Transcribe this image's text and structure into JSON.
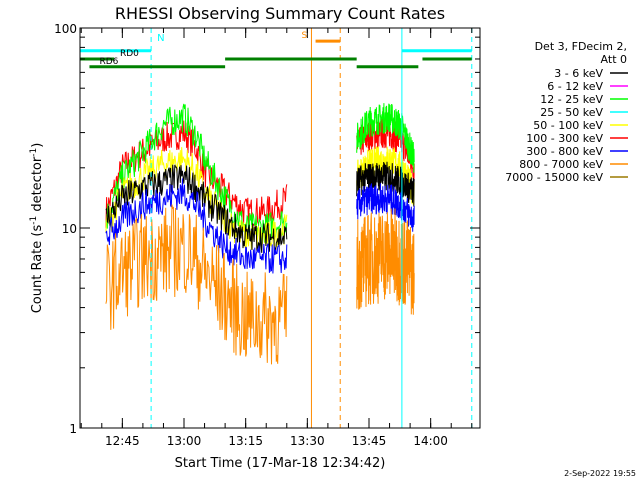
{
  "chart_data": {
    "type": "line",
    "title": "RHESSI Observing Summary Count Rates",
    "xlabel": "Start Time (17-Mar-18 12:34:42)",
    "ylabel_parts": {
      "main": "Count Rate (s",
      "sup": "-1",
      "tail": " detector",
      "sup2": "-1",
      "close": ")"
    },
    "y_scale": "log",
    "ylim": [
      1,
      100
    ],
    "y_ticks": [
      {
        "value": 1,
        "label": "1"
      },
      {
        "value": 10,
        "label": "10"
      },
      {
        "value": 100,
        "label": "100"
      }
    ],
    "xlim": [
      "12:34:42",
      "14:12:00"
    ],
    "x_ticks": [
      {
        "value": "12:45",
        "label": "12:45"
      },
      {
        "value": "13:00",
        "label": "13:00"
      },
      {
        "value": "13:15",
        "label": "13:15"
      },
      {
        "value": "13:30",
        "label": "13:30"
      },
      {
        "value": "13:45",
        "label": "13:45"
      },
      {
        "value": "14:00",
        "label": "14:00"
      }
    ],
    "legend": {
      "position": "top-right",
      "header": [
        "Det 3, FDecim 2,",
        "Att 0"
      ],
      "entries": [
        {
          "label": "3 - 6 keV",
          "color": "#000000"
        },
        {
          "label": "6 - 12 keV",
          "color": "#ff00ff"
        },
        {
          "label": "12 - 25 keV",
          "color": "#00ff00"
        },
        {
          "label": "25 - 50 keV",
          "color": "#00ffff"
        },
        {
          "label": "50 - 100 keV",
          "color": "#ffff00"
        },
        {
          "label": "100 - 300 keV",
          "color": "#ff0000"
        },
        {
          "label": "300 - 800 keV",
          "color": "#0000ff"
        },
        {
          "label": "800 - 7000 keV",
          "color": "#ff8c00"
        },
        {
          "label": "7000 - 15000 keV",
          "color": "#9c7a00"
        }
      ]
    },
    "intervals": [
      {
        "start": "12:41:00",
        "end": "13:25:00"
      },
      {
        "start": "13:42:00",
        "end": "13:56:00"
      }
    ],
    "series": [
      {
        "name": "100 - 300 keV",
        "color": "#ff0000",
        "times": [
          "12:41",
          "12:45",
          "12:50",
          "12:55",
          "13:00",
          "13:03",
          "13:05",
          "13:10",
          "13:15",
          "13:20",
          "13:25",
          "13:42",
          "13:45",
          "13:50",
          "13:53",
          "13:56"
        ],
        "values": [
          12,
          20,
          24,
          28,
          30,
          25,
          19,
          15,
          12,
          12,
          14,
          26,
          29,
          30,
          27,
          20
        ]
      },
      {
        "name": "12 - 25 keV",
        "color": "#00ff00",
        "times": [
          "12:41",
          "12:45",
          "12:50",
          "12:55",
          "13:00",
          "13:03",
          "13:05",
          "13:10",
          "13:15",
          "13:20",
          "13:25",
          "13:42",
          "13:45",
          "13:50",
          "13:53",
          "13:56"
        ],
        "values": [
          11,
          18,
          24,
          33,
          36,
          29,
          22,
          14,
          10,
          10,
          11,
          28,
          34,
          36,
          32,
          22
        ]
      },
      {
        "name": "50 - 100 keV",
        "color": "#ffff00",
        "times": [
          "12:41",
          "12:45",
          "12:50",
          "12:55",
          "13:00",
          "13:03",
          "13:05",
          "13:10",
          "13:15",
          "13:20",
          "13:25",
          "13:42",
          "13:45",
          "13:50",
          "13:53",
          "13:56"
        ],
        "values": [
          10,
          15,
          18,
          21,
          22,
          19,
          15,
          11,
          9,
          9,
          10,
          18,
          21,
          22,
          20,
          15
        ]
      },
      {
        "name": "3 - 6 keV",
        "color": "#000000",
        "times": [
          "12:41",
          "12:45",
          "12:50",
          "12:55",
          "13:00",
          "13:03",
          "13:05",
          "13:10",
          "13:15",
          "13:20",
          "13:25",
          "13:42",
          "13:45",
          "13:50",
          "13:53",
          "13:56"
        ],
        "values": [
          11,
          14,
          16,
          17,
          18,
          16,
          14,
          11,
          9,
          9,
          9,
          17,
          18,
          18,
          17,
          15
        ]
      },
      {
        "name": "300 - 800 keV",
        "color": "#0000ff",
        "times": [
          "12:41",
          "12:45",
          "12:50",
          "12:55",
          "13:00",
          "13:03",
          "13:05",
          "13:10",
          "13:15",
          "13:20",
          "13:25",
          "13:42",
          "13:45",
          "13:50",
          "13:53",
          "13:56"
        ],
        "values": [
          9,
          11,
          13,
          14,
          15,
          13,
          11,
          8,
          7,
          7,
          7,
          13,
          14,
          14,
          13,
          11
        ]
      },
      {
        "name": "800 - 7000 keV",
        "color": "#ff8c00",
        "times": [
          "12:41",
          "12:45",
          "12:50",
          "12:55",
          "13:00",
          "13:03",
          "13:05",
          "13:10",
          "13:15",
          "13:20",
          "13:25",
          "13:42",
          "13:45",
          "13:50",
          "13:53",
          "13:56"
        ],
        "values": [
          5,
          6,
          7,
          7.5,
          8,
          7,
          6,
          4.5,
          3.5,
          3.5,
          3.5,
          6.5,
          7,
          7.5,
          7,
          6
        ]
      }
    ],
    "state_bars": [
      {
        "label": "",
        "color": "#00ffff",
        "y": 77,
        "segments": [
          [
            "12:34:42",
            "12:52:00"
          ],
          [
            "13:53:00",
            "14:10:00"
          ]
        ]
      },
      {
        "label": "RD0",
        "color": "#008000",
        "y": 70,
        "segments": [
          [
            "12:34:42",
            "12:43:00"
          ],
          [
            "13:10:00",
            "13:42:00"
          ],
          [
            "13:58:00",
            "14:10:00"
          ]
        ]
      },
      {
        "label": "RD6",
        "color": "#008000",
        "y": 64,
        "segments": [
          [
            "12:37:00",
            "13:10:00"
          ],
          [
            "13:42:00",
            "13:57:00"
          ]
        ]
      },
      {
        "label": "S",
        "color": "#ff8c00",
        "y": 86,
        "segments": [
          [
            "13:32:00",
            "13:38:00"
          ]
        ]
      }
    ],
    "markers": [
      {
        "label": "N",
        "color": "#00ffff",
        "solid": "12:34:42",
        "dashed": "12:52:00"
      },
      {
        "label": "",
        "color": "#00ffff",
        "solid": "13:53:00",
        "dashed": "14:10:00"
      },
      {
        "label": "",
        "color": "#ff8c00",
        "solid": "13:31:00",
        "dashed": "13:38:00"
      }
    ]
  },
  "timestamp": "2-Sep-2022 19:55"
}
